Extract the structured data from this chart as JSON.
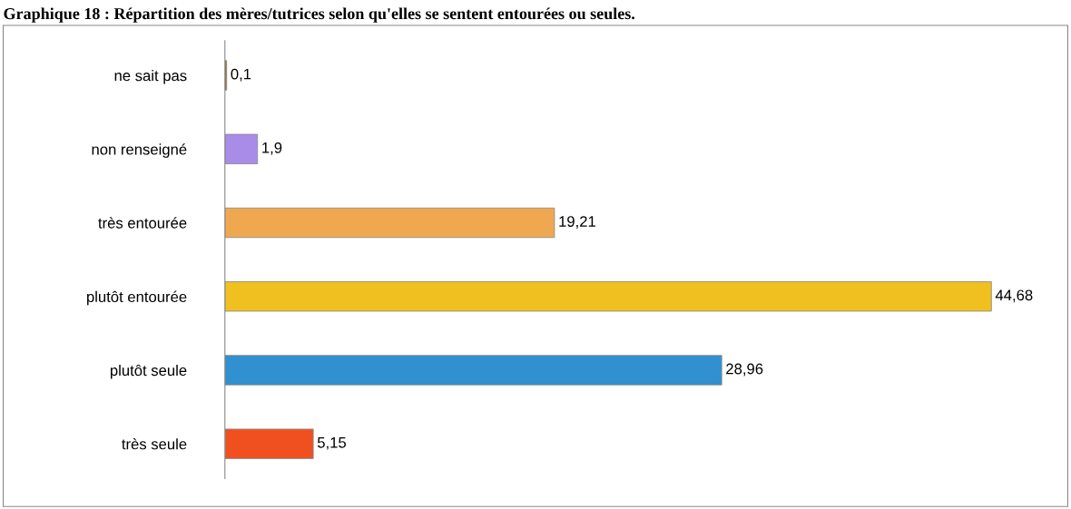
{
  "chart_data": {
    "type": "bar",
    "orientation": "horizontal",
    "title": "Graphique 18 : Répartition des mères/tutrices selon qu'elles se sentent entourées ou seules.",
    "categories": [
      "ne sait pas",
      "non renseigné",
      "très entourée",
      "plutôt entourée",
      "plutôt seule",
      "très seule"
    ],
    "values": [
      0.1,
      1.9,
      19.21,
      44.68,
      28.96,
      5.15
    ],
    "value_labels": [
      "0,1",
      "1,9",
      "19,21",
      "44,68",
      "28,96",
      "5,15"
    ],
    "colors": [
      "#9a6a10",
      "#a98ce8",
      "#f0a850",
      "#f0c020",
      "#3090d0",
      "#f05020"
    ],
    "grid": false,
    "legend": false
  }
}
